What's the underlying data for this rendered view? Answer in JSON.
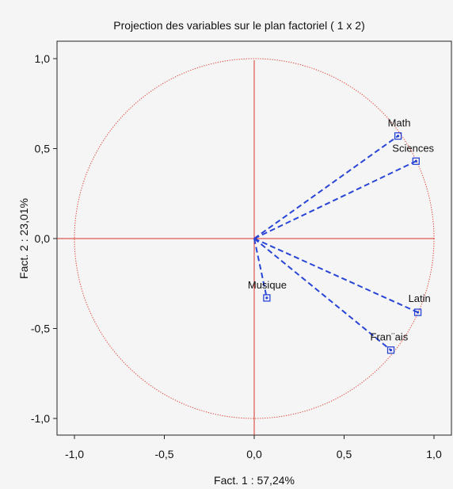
{
  "chart_data": {
    "type": "scatter",
    "title": "Projection des variables sur le plan factoriel ( 1 x  2)",
    "xlabel": "Fact. 1  : 57,24%",
    "ylabel": "Fact. 2  : 23,01%",
    "xlim": [
      -1.1,
      1.1
    ],
    "ylim": [
      -1.1,
      1.1
    ],
    "x_ticks": [
      {
        "value": -1.0,
        "label": "-1,0"
      },
      {
        "value": -0.5,
        "label": "-0,5"
      },
      {
        "value": 0.0,
        "label": "0,0"
      },
      {
        "value": 0.5,
        "label": "0,5"
      },
      {
        "value": 1.0,
        "label": "1,0"
      }
    ],
    "y_ticks": [
      {
        "value": 1.0,
        "label": "1,0"
      },
      {
        "value": 0.5,
        "label": "0,5"
      },
      {
        "value": 0.0,
        "label": "0,0"
      },
      {
        "value": -0.5,
        "label": "-0,5"
      },
      {
        "value": -1.0,
        "label": "-1,0"
      }
    ],
    "unit_circle": true,
    "grid": false,
    "points": [
      {
        "label": "Math",
        "x": 0.8,
        "y": 0.57
      },
      {
        "label": "Sciences",
        "x": 0.9,
        "y": 0.43
      },
      {
        "label": "Latin",
        "x": 0.91,
        "y": -0.41
      },
      {
        "label": "Fran¨ais",
        "x": 0.76,
        "y": -0.62
      },
      {
        "label": "Musique",
        "x": 0.07,
        "y": -0.33
      }
    ],
    "colors": {
      "circle": "#e0453a",
      "axes": "#d9342b",
      "vectors": "#2945d6",
      "markers": "#2945d6"
    }
  }
}
